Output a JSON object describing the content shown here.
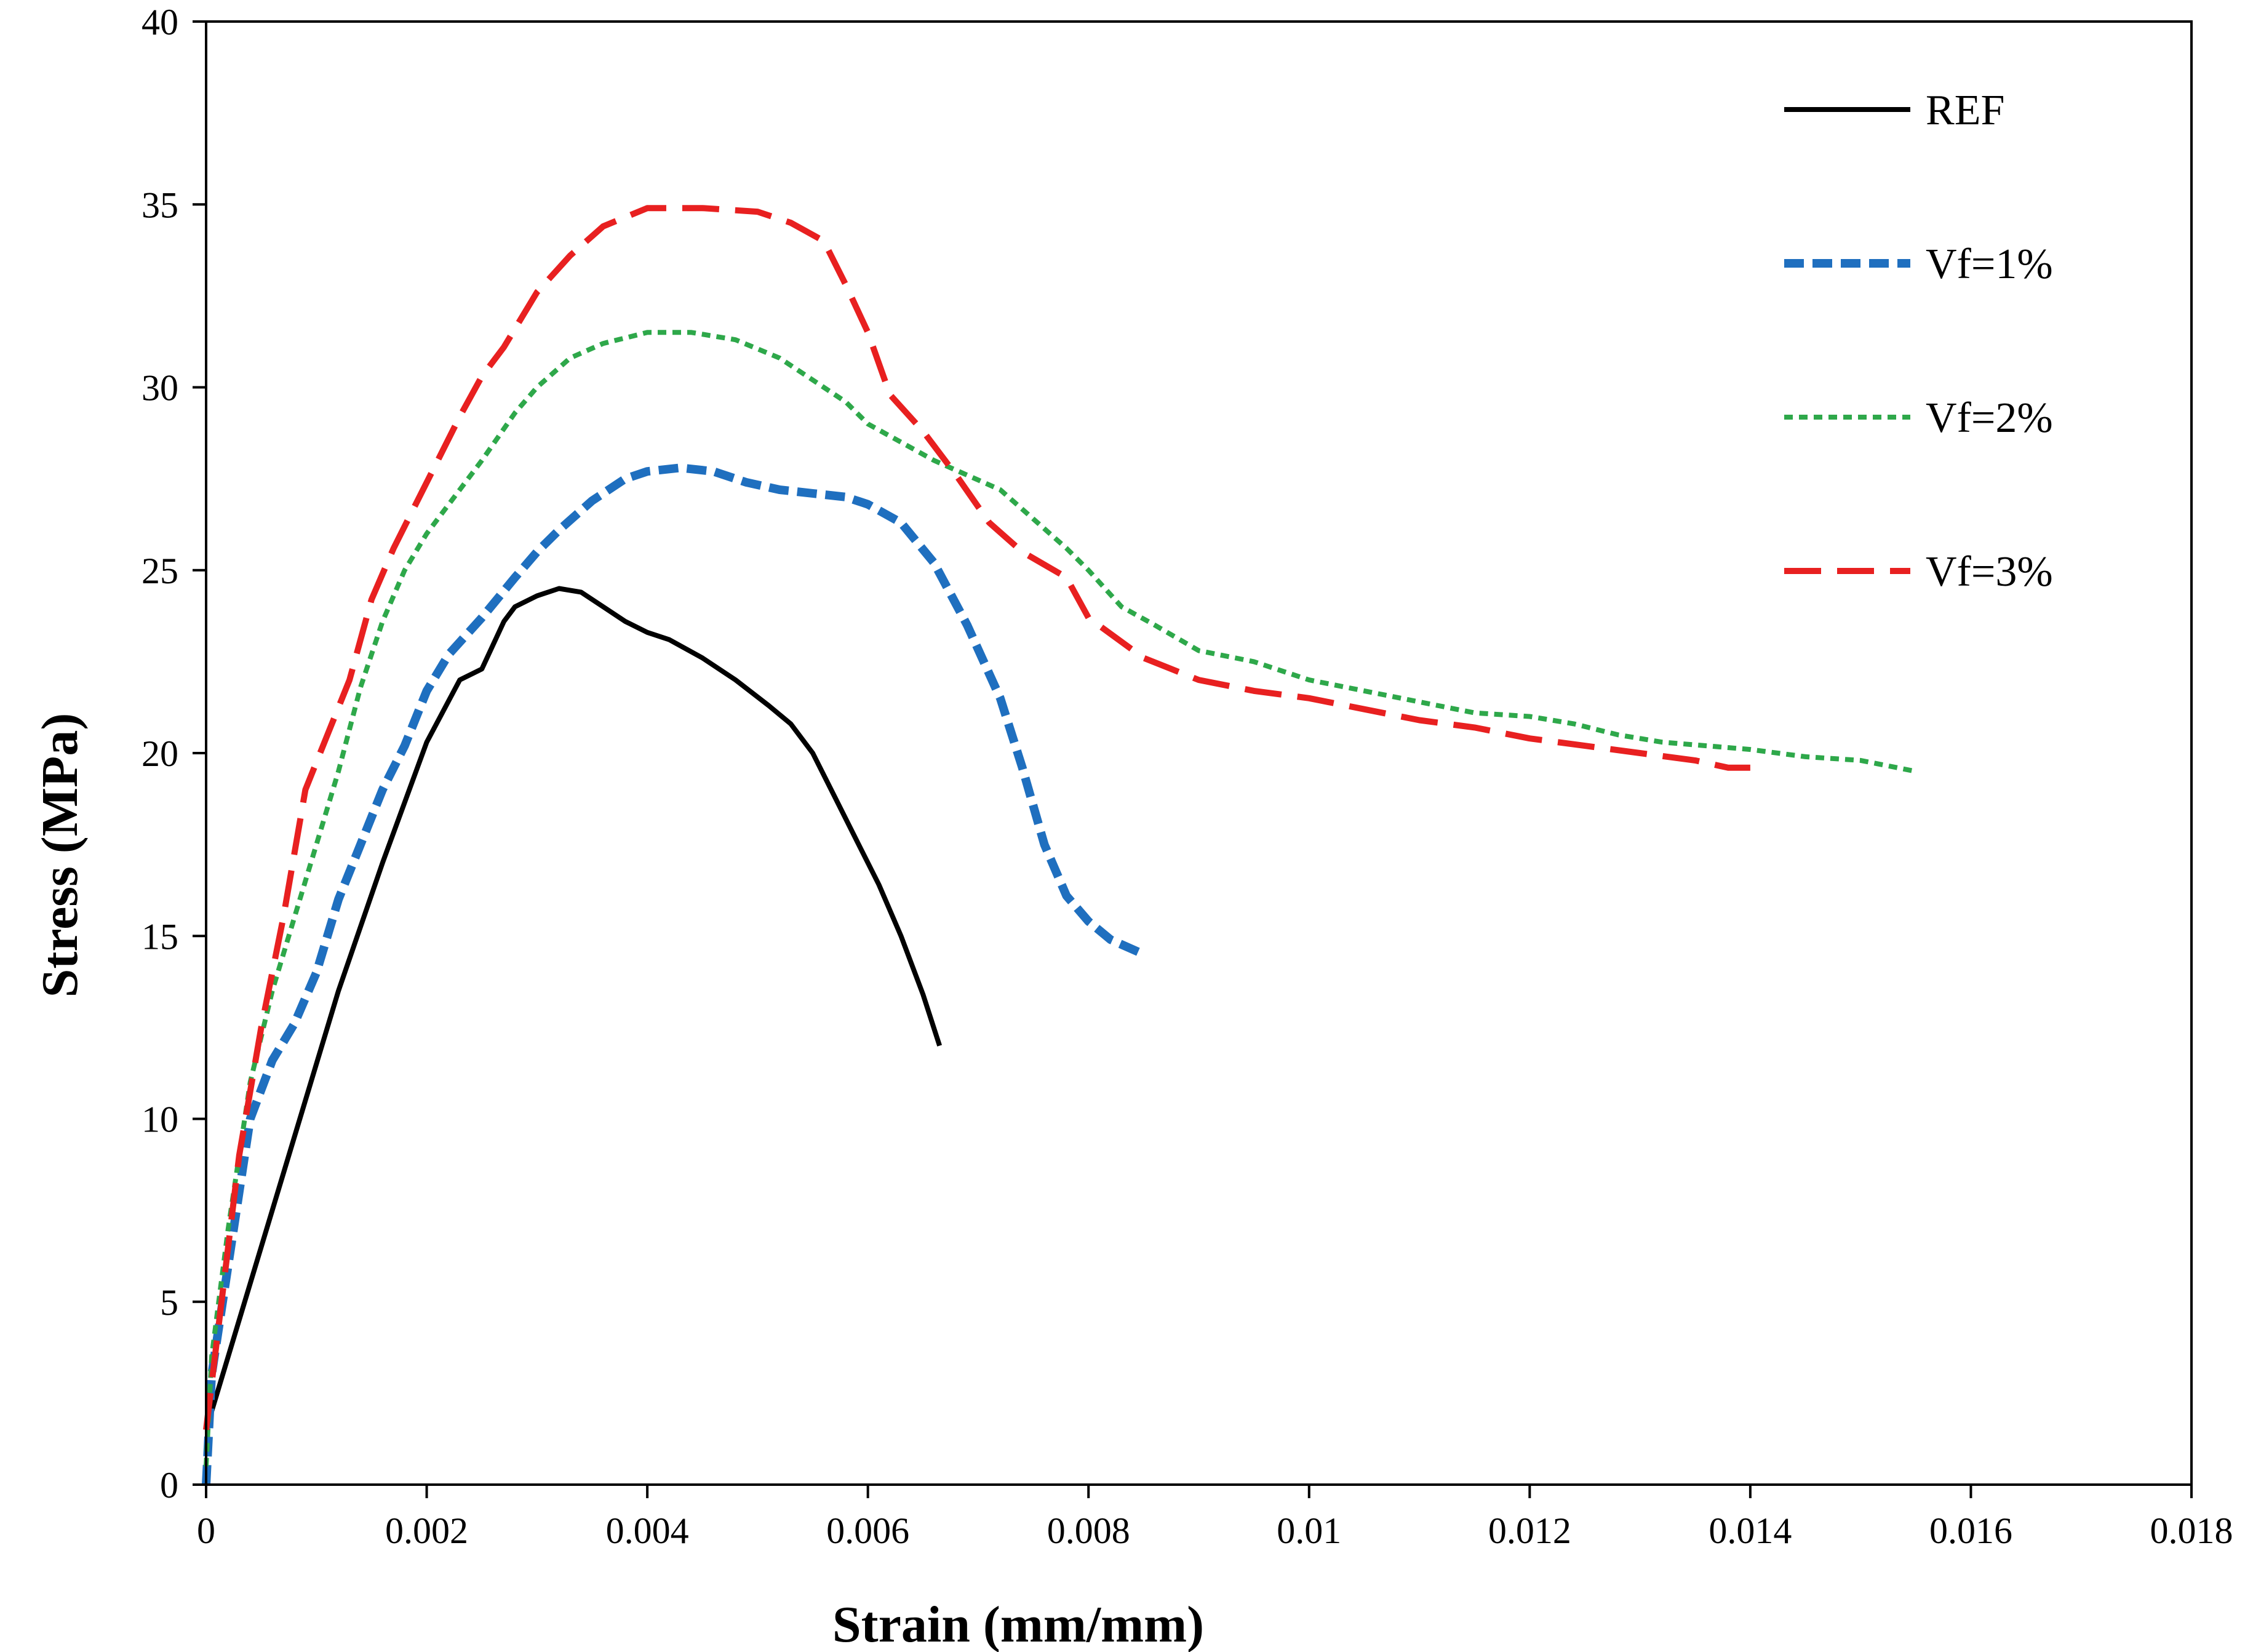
{
  "chart_data": {
    "type": "line",
    "title": "",
    "xlabel": "Strain (mm/mm)",
    "ylabel": "Stress (MPa)",
    "xlim": [
      0,
      0.018
    ],
    "ylim": [
      0,
      40
    ],
    "x_ticks": [
      0,
      0.002,
      0.004,
      0.006,
      0.008,
      0.01,
      0.012,
      0.014,
      0.016,
      0.018
    ],
    "x_tick_labels": [
      "0",
      "0.002",
      "0.004",
      "0.006",
      "0.008",
      "0.01",
      "0.012",
      "0.014",
      "0.016",
      "0.018"
    ],
    "y_ticks": [
      0,
      5,
      10,
      15,
      20,
      25,
      30,
      35,
      40
    ],
    "y_tick_labels": [
      "0",
      "5",
      "10",
      "15",
      "20",
      "25",
      "30",
      "35",
      "40"
    ],
    "grid": false,
    "legend_position": "top-right",
    "series": [
      {
        "name": "REF",
        "color": "#000000",
        "style": "solid",
        "points": [
          [
            0,
            1.5
          ],
          [
            0.0004,
            5.5
          ],
          [
            0.0008,
            9.5
          ],
          [
            0.0012,
            13.5
          ],
          [
            0.0016,
            17
          ],
          [
            0.002,
            20.3
          ],
          [
            0.0023,
            22
          ],
          [
            0.0025,
            22.3
          ],
          [
            0.0027,
            23.6
          ],
          [
            0.0028,
            24
          ],
          [
            0.003,
            24.3
          ],
          [
            0.0032,
            24.5
          ],
          [
            0.0034,
            24.4
          ],
          [
            0.0036,
            24
          ],
          [
            0.0038,
            23.6
          ],
          [
            0.004,
            23.3
          ],
          [
            0.0042,
            23.1
          ],
          [
            0.0045,
            22.6
          ],
          [
            0.0048,
            22
          ],
          [
            0.0051,
            21.3
          ],
          [
            0.0053,
            20.8
          ],
          [
            0.0055,
            20
          ],
          [
            0.0057,
            18.8
          ],
          [
            0.0059,
            17.6
          ],
          [
            0.0061,
            16.4
          ],
          [
            0.0063,
            15
          ],
          [
            0.0065,
            13.4
          ],
          [
            0.00665,
            12
          ]
        ]
      },
      {
        "name": "Vf=1%",
        "color": "#1f6fbf",
        "style": "dashed",
        "points": [
          [
            0,
            0
          ],
          [
            5e-05,
            3
          ],
          [
            0.0002,
            6
          ],
          [
            0.0004,
            10
          ],
          [
            0.0006,
            11.6
          ],
          [
            0.0008,
            12.6
          ],
          [
            0.001,
            14
          ],
          [
            0.0012,
            16
          ],
          [
            0.0014,
            17.5
          ],
          [
            0.0016,
            19
          ],
          [
            0.0018,
            20.2
          ],
          [
            0.002,
            21.7
          ],
          [
            0.0022,
            22.7
          ],
          [
            0.0025,
            23.7
          ],
          [
            0.0028,
            24.8
          ],
          [
            0.003,
            25.5
          ],
          [
            0.0032,
            26.1
          ],
          [
            0.0035,
            26.9
          ],
          [
            0.0038,
            27.5
          ],
          [
            0.004,
            27.7
          ],
          [
            0.0043,
            27.8
          ],
          [
            0.0046,
            27.7
          ],
          [
            0.0049,
            27.4
          ],
          [
            0.0052,
            27.2
          ],
          [
            0.0055,
            27.1
          ],
          [
            0.0058,
            27
          ],
          [
            0.006,
            26.8
          ],
          [
            0.0063,
            26.3
          ],
          [
            0.0066,
            25.2
          ],
          [
            0.0069,
            23.5
          ],
          [
            0.0072,
            21.5
          ],
          [
            0.0074,
            19.6
          ],
          [
            0.0076,
            17.5
          ],
          [
            0.0078,
            16.1
          ],
          [
            0.008,
            15.4
          ],
          [
            0.0082,
            14.9
          ],
          [
            0.0085,
            14.5
          ]
        ]
      },
      {
        "name": "Vf=2%",
        "color": "#2ea84a",
        "style": "dotted",
        "points": [
          [
            0,
            0.5
          ],
          [
            5e-05,
            3.5
          ],
          [
            0.0002,
            7
          ],
          [
            0.0004,
            11
          ],
          [
            0.0006,
            13.5
          ],
          [
            0.0008,
            15.5
          ],
          [
            0.001,
            17.5
          ],
          [
            0.0012,
            19.5
          ],
          [
            0.0014,
            21.8
          ],
          [
            0.0016,
            23.6
          ],
          [
            0.0018,
            25
          ],
          [
            0.002,
            26
          ],
          [
            0.0022,
            26.8
          ],
          [
            0.0025,
            28
          ],
          [
            0.0028,
            29.3
          ],
          [
            0.003,
            30
          ],
          [
            0.0033,
            30.8
          ],
          [
            0.0036,
            31.2
          ],
          [
            0.004,
            31.5
          ],
          [
            0.0044,
            31.5
          ],
          [
            0.0048,
            31.3
          ],
          [
            0.0052,
            30.8
          ],
          [
            0.0055,
            30.2
          ],
          [
            0.0058,
            29.6
          ],
          [
            0.006,
            29
          ],
          [
            0.0063,
            28.5
          ],
          [
            0.0066,
            28
          ],
          [
            0.0069,
            27.6
          ],
          [
            0.0072,
            27.2
          ],
          [
            0.0075,
            26.4
          ],
          [
            0.0078,
            25.6
          ],
          [
            0.008,
            25
          ],
          [
            0.0083,
            24
          ],
          [
            0.0086,
            23.5
          ],
          [
            0.009,
            22.8
          ],
          [
            0.0095,
            22.5
          ],
          [
            0.01,
            22
          ],
          [
            0.0105,
            21.7
          ],
          [
            0.011,
            21.4
          ],
          [
            0.0115,
            21.1
          ],
          [
            0.012,
            21
          ],
          [
            0.0124,
            20.8
          ],
          [
            0.0128,
            20.5
          ],
          [
            0.0132,
            20.3
          ],
          [
            0.0136,
            20.2
          ],
          [
            0.014,
            20.1
          ],
          [
            0.0145,
            19.9
          ],
          [
            0.015,
            19.8
          ],
          [
            0.0155,
            19.5
          ]
        ]
      },
      {
        "name": "Vf=3%",
        "color": "#e82020",
        "style": "longdash",
        "points": [
          [
            0,
            1.5
          ],
          [
            0.0001,
            4
          ],
          [
            0.0003,
            9
          ],
          [
            0.0005,
            12.5
          ],
          [
            0.0007,
            15.5
          ],
          [
            0.0009,
            19
          ],
          [
            0.0011,
            20.5
          ],
          [
            0.0013,
            22
          ],
          [
            0.0015,
            24.2
          ],
          [
            0.0017,
            25.6
          ],
          [
            0.0019,
            26.8
          ],
          [
            0.0021,
            28
          ],
          [
            0.0023,
            29.2
          ],
          [
            0.0025,
            30.3
          ],
          [
            0.0027,
            31.1
          ],
          [
            0.003,
            32.6
          ],
          [
            0.0033,
            33.6
          ],
          [
            0.0036,
            34.4
          ],
          [
            0.004,
            34.9
          ],
          [
            0.0045,
            34.9
          ],
          [
            0.005,
            34.8
          ],
          [
            0.0053,
            34.5
          ],
          [
            0.0056,
            34
          ],
          [
            0.0058,
            32.8
          ],
          [
            0.006,
            31.5
          ],
          [
            0.0062,
            29.8
          ],
          [
            0.0065,
            28.8
          ],
          [
            0.0068,
            27.6
          ],
          [
            0.0071,
            26.3
          ],
          [
            0.0074,
            25.5
          ],
          [
            0.0078,
            24.8
          ],
          [
            0.008,
            23.7
          ],
          [
            0.0085,
            22.6
          ],
          [
            0.009,
            22
          ],
          [
            0.0095,
            21.7
          ],
          [
            0.01,
            21.5
          ],
          [
            0.0105,
            21.2
          ],
          [
            0.011,
            20.9
          ],
          [
            0.0115,
            20.7
          ],
          [
            0.012,
            20.4
          ],
          [
            0.0125,
            20.2
          ],
          [
            0.013,
            20
          ],
          [
            0.0135,
            19.8
          ],
          [
            0.0138,
            19.6
          ],
          [
            0.014,
            19.6
          ]
        ]
      }
    ]
  }
}
